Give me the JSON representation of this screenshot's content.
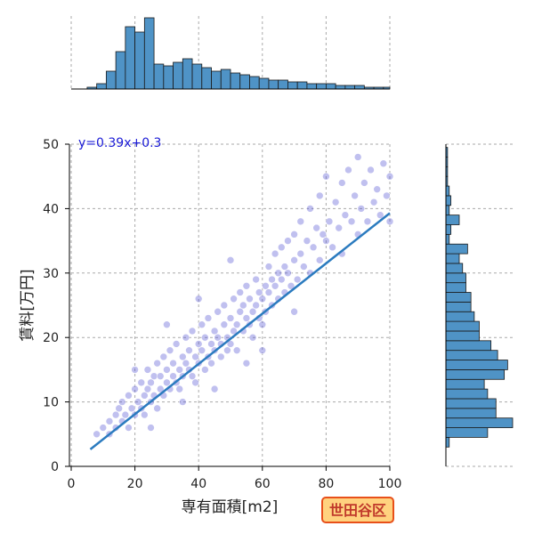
{
  "badge": "世田谷区",
  "chart_data": {
    "type": "scatter",
    "xlabel": "専有面積[m2]",
    "ylabel": "賃料[万円]",
    "xlim": [
      0,
      100
    ],
    "ylim": [
      0,
      50
    ],
    "xticks": [
      0,
      20,
      40,
      60,
      80,
      100
    ],
    "yticks": [
      0,
      10,
      20,
      30,
      40,
      50
    ],
    "grid": true,
    "regression": {
      "equation": "y=0.39x+0.3",
      "slope": 0.39,
      "intercept": 0.3,
      "x_range": [
        6,
        100
      ]
    },
    "points": [
      [
        8,
        5
      ],
      [
        10,
        6
      ],
      [
        12,
        5
      ],
      [
        12,
        7
      ],
      [
        14,
        8
      ],
      [
        14,
        6
      ],
      [
        15,
        9
      ],
      [
        16,
        7
      ],
      [
        16,
        10
      ],
      [
        17,
        8
      ],
      [
        18,
        11
      ],
      [
        18,
        6
      ],
      [
        19,
        9
      ],
      [
        20,
        12
      ],
      [
        20,
        8
      ],
      [
        21,
        10
      ],
      [
        22,
        13
      ],
      [
        22,
        9
      ],
      [
        23,
        11
      ],
      [
        23,
        8
      ],
      [
        24,
        12
      ],
      [
        24,
        15
      ],
      [
        25,
        10
      ],
      [
        25,
        13
      ],
      [
        26,
        11
      ],
      [
        26,
        14
      ],
      [
        27,
        9
      ],
      [
        27,
        16
      ],
      [
        28,
        12
      ],
      [
        28,
        14
      ],
      [
        29,
        11
      ],
      [
        29,
        17
      ],
      [
        30,
        13
      ],
      [
        30,
        15
      ],
      [
        31,
        12
      ],
      [
        31,
        18
      ],
      [
        32,
        14
      ],
      [
        32,
        16
      ],
      [
        33,
        13
      ],
      [
        33,
        19
      ],
      [
        34,
        15
      ],
      [
        34,
        12
      ],
      [
        35,
        17
      ],
      [
        35,
        14
      ],
      [
        36,
        16
      ],
      [
        36,
        20
      ],
      [
        37,
        15
      ],
      [
        37,
        18
      ],
      [
        38,
        14
      ],
      [
        38,
        21
      ],
      [
        39,
        17
      ],
      [
        39,
        13
      ],
      [
        40,
        16
      ],
      [
        40,
        19
      ],
      [
        41,
        18
      ],
      [
        41,
        22
      ],
      [
        42,
        15
      ],
      [
        42,
        20
      ],
      [
        43,
        17
      ],
      [
        43,
        23
      ],
      [
        44,
        19
      ],
      [
        44,
        16
      ],
      [
        45,
        21
      ],
      [
        45,
        18
      ],
      [
        46,
        20
      ],
      [
        46,
        24
      ],
      [
        47,
        19
      ],
      [
        47,
        17
      ],
      [
        48,
        22
      ],
      [
        48,
        25
      ],
      [
        49,
        20
      ],
      [
        49,
        18
      ],
      [
        50,
        23
      ],
      [
        50,
        19
      ],
      [
        51,
        21
      ],
      [
        51,
        26
      ],
      [
        52,
        22
      ],
      [
        52,
        18
      ],
      [
        53,
        24
      ],
      [
        53,
        27
      ],
      [
        54,
        21
      ],
      [
        54,
        25
      ],
      [
        55,
        23
      ],
      [
        55,
        28
      ],
      [
        56,
        22
      ],
      [
        56,
        26
      ],
      [
        57,
        24
      ],
      [
        57,
        20
      ],
      [
        58,
        25
      ],
      [
        58,
        29
      ],
      [
        59,
        23
      ],
      [
        59,
        27
      ],
      [
        60,
        26
      ],
      [
        60,
        22
      ],
      [
        61,
        28
      ],
      [
        61,
        24
      ],
      [
        62,
        27
      ],
      [
        62,
        31
      ],
      [
        63,
        25
      ],
      [
        63,
        29
      ],
      [
        64,
        28
      ],
      [
        64,
        33
      ],
      [
        65,
        26
      ],
      [
        65,
        30
      ],
      [
        66,
        29
      ],
      [
        66,
        34
      ],
      [
        67,
        27
      ],
      [
        67,
        31
      ],
      [
        68,
        30
      ],
      [
        68,
        35
      ],
      [
        69,
        28
      ],
      [
        70,
        32
      ],
      [
        70,
        36
      ],
      [
        71,
        29
      ],
      [
        72,
        33
      ],
      [
        72,
        38
      ],
      [
        73,
        31
      ],
      [
        74,
        35
      ],
      [
        75,
        30
      ],
      [
        75,
        40
      ],
      [
        76,
        34
      ],
      [
        77,
        37
      ],
      [
        78,
        32
      ],
      [
        78,
        42
      ],
      [
        79,
        36
      ],
      [
        80,
        35
      ],
      [
        80,
        45
      ],
      [
        81,
        38
      ],
      [
        82,
        34
      ],
      [
        83,
        41
      ],
      [
        84,
        37
      ],
      [
        85,
        44
      ],
      [
        85,
        33
      ],
      [
        86,
        39
      ],
      [
        87,
        46
      ],
      [
        88,
        38
      ],
      [
        89,
        42
      ],
      [
        90,
        36
      ],
      [
        90,
        48
      ],
      [
        91,
        40
      ],
      [
        92,
        44
      ],
      [
        93,
        38
      ],
      [
        94,
        46
      ],
      [
        95,
        41
      ],
      [
        96,
        43
      ],
      [
        97,
        39
      ],
      [
        98,
        47
      ],
      [
        99,
        42
      ],
      [
        100,
        45
      ],
      [
        100,
        38
      ],
      [
        20,
        15
      ],
      [
        30,
        22
      ],
      [
        40,
        26
      ],
      [
        50,
        32
      ],
      [
        25,
        6
      ],
      [
        35,
        10
      ],
      [
        45,
        12
      ],
      [
        55,
        16
      ],
      [
        60,
        18
      ],
      [
        70,
        24
      ]
    ],
    "top_hist": {
      "bin_edges": [
        5,
        8,
        11,
        14,
        17,
        20,
        23,
        26,
        29,
        32,
        35,
        38,
        41,
        44,
        47,
        50,
        53,
        56,
        59,
        62,
        65,
        68,
        71,
        74,
        77,
        80,
        83,
        86,
        89,
        92,
        95,
        98,
        100
      ],
      "counts": [
        1,
        3,
        10,
        21,
        35,
        32,
        40,
        14,
        13,
        15,
        17,
        14,
        12,
        10,
        11,
        9,
        8,
        7,
        6,
        5,
        5,
        4,
        4,
        3,
        3,
        3,
        2,
        2,
        2,
        1,
        1,
        1
      ]
    },
    "right_hist": {
      "bin_edges": [
        3,
        4.5,
        6,
        7.5,
        9,
        10.5,
        12,
        13.5,
        15,
        16.5,
        18,
        19.5,
        21,
        22.5,
        24,
        25.5,
        27,
        28.5,
        30,
        31.5,
        33,
        34.5,
        36,
        37.5,
        39,
        40.5,
        42,
        43.5,
        45,
        46.5,
        48,
        49.5
      ],
      "counts": [
        2,
        25,
        40,
        30,
        30,
        25,
        23,
        35,
        37,
        31,
        27,
        20,
        20,
        17,
        15,
        15,
        12,
        12,
        10,
        8,
        13,
        2,
        3,
        8,
        2,
        3,
        2,
        1,
        1,
        1,
        1
      ]
    }
  }
}
